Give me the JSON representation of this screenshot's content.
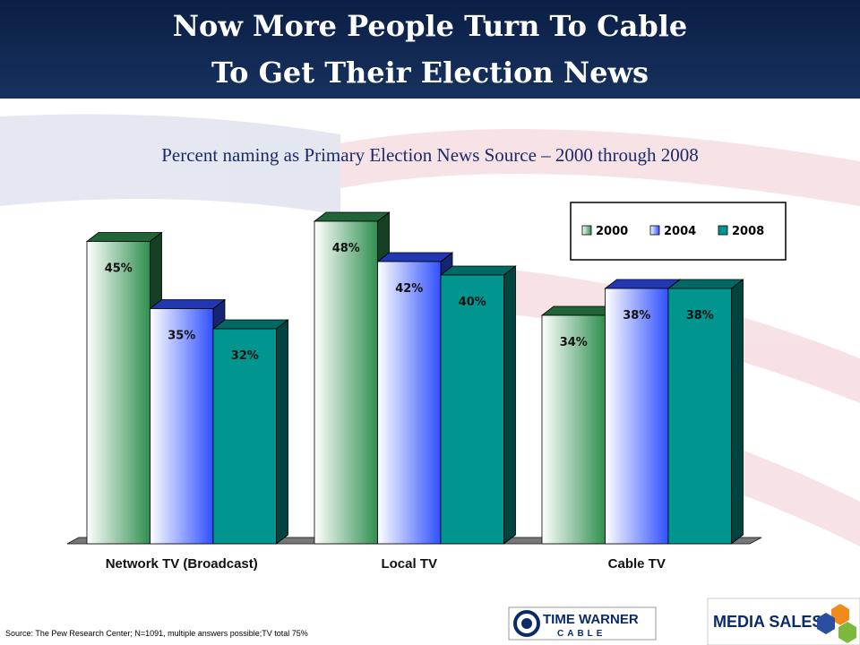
{
  "chart_data": {
    "type": "bar3d",
    "title": [
      "Now More People Turn To Cable",
      "To Get Their Election News"
    ],
    "subtitle": "Percent naming as Primary Election News Source – 2000 through 2008",
    "categories": [
      "Network TV (Broadcast)",
      "Local TV",
      "Cable TV"
    ],
    "series": [
      {
        "name": "2000",
        "color": "#2f8f4f",
        "gradient": true,
        "values": [
          45,
          48,
          34
        ],
        "value_labels": [
          "45%",
          "48%",
          "34%"
        ]
      },
      {
        "name": "2004",
        "color": "#3050ff",
        "gradient": true,
        "values": [
          35,
          42,
          38
        ],
        "value_labels": [
          "35%",
          "42%",
          "38%"
        ]
      },
      {
        "name": "2008",
        "color": "#00968f",
        "gradient": false,
        "values": [
          32,
          40,
          38
        ],
        "value_labels": [
          "32%",
          "40%",
          "38%"
        ]
      }
    ],
    "source": "Source: The Pew Research Center; N=1091, multiple answers possible;TV total 75%"
  },
  "logos": {
    "time_warner": "TIME WARNER",
    "cable": "CABLE",
    "media_sales": "MEDIA SALES"
  }
}
